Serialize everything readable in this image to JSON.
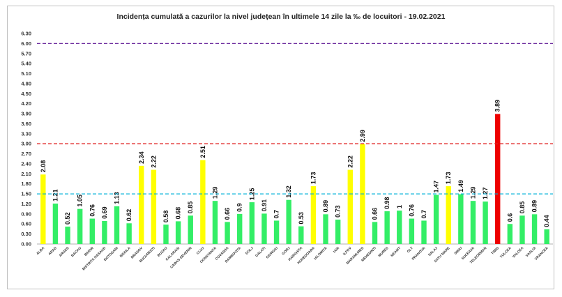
{
  "chart_data": {
    "type": "bar",
    "title": "Incidența cumulată a cazurilor la nivel județean în ultimele 14 zile la ‰ de locuitori - 19.02.2021",
    "xlabel": "",
    "ylabel": "",
    "ylim": [
      0,
      6.3
    ],
    "yticks": [
      "0.00",
      "0.30",
      "0.60",
      "0.90",
      "1.20",
      "1.50",
      "1.80",
      "2.10",
      "2.40",
      "2.70",
      "3.00",
      "3.30",
      "3.60",
      "3.90",
      "4.20",
      "4.50",
      "4.80",
      "5.10",
      "5.40",
      "5.70",
      "6.00",
      "6.30"
    ],
    "grid": false,
    "legend": "none",
    "thresholds": [
      {
        "value": 1.5,
        "color": "#00b0d8"
      },
      {
        "value": 3.0,
        "color": "#e02020"
      },
      {
        "value": 6.0,
        "color": "#7030a0"
      }
    ],
    "colors": {
      "green": "#33ee66",
      "yellow": "#ffff00",
      "red": "#ee0000"
    },
    "categories": [
      "ALBA",
      "ARAD",
      "ARGES",
      "BACAU",
      "BIHOR",
      "BISTRITA NASAUD",
      "BOTOSANI",
      "BRAILA",
      "BRASOV",
      "BUCURESTI",
      "BUZAU",
      "CALARASI",
      "CARAS-SEVERIN",
      "CLUJ",
      "CONSTANTA",
      "COVASNA",
      "DAMBOVITA",
      "DOLJ",
      "GALATI",
      "GIURGIU",
      "GORJ",
      "HARGHITA",
      "HUNEDOARA",
      "IALOMITA",
      "IASI",
      "ILFOV",
      "MARAMURES",
      "MEHEDINTI",
      "MURES",
      "NEAMT",
      "OLT",
      "PRAHOVA",
      "SALAJ",
      "SATU MARE",
      "SIBIU",
      "SUCEAVA",
      "TELEORMAN",
      "TIMIS",
      "TULCEA",
      "VALCEA",
      "VASLUI",
      "VRANCEA"
    ],
    "values": [
      2.08,
      1.21,
      0.52,
      1.05,
      0.76,
      0.69,
      1.13,
      0.62,
      2.34,
      2.22,
      0.58,
      0.68,
      0.85,
      2.51,
      1.29,
      0.66,
      0.9,
      1.25,
      0.91,
      0.7,
      1.32,
      0.53,
      1.73,
      0.89,
      0.73,
      2.22,
      2.99,
      0.66,
      0.98,
      1,
      0.76,
      0.7,
      1.47,
      1.73,
      1.49,
      1.29,
      1.27,
      3.89,
      0.6,
      0.85,
      0.89,
      0.44
    ],
    "labels": [
      "2.08",
      "1.21",
      "0.52",
      "1.05",
      "0.76",
      "0.69",
      "1.13",
      "0.62",
      "2.34",
      "2.22",
      "0.58",
      "0.68",
      "0.85",
      "2.51",
      "1.29",
      "0.66",
      "0.9",
      "1.25",
      "0.91",
      "0.7",
      "1.32",
      "0.53",
      "1.73",
      "0.89",
      "0.73",
      "2.22",
      "2.99",
      "0.66",
      "0.98",
      "1",
      "0.76",
      "0.7",
      "1.47",
      "1.73",
      "1.49",
      "1.29",
      "1.27",
      "3.89",
      "0.6",
      "0.85",
      "0.89",
      "0.44"
    ],
    "bar_colors": [
      "yellow",
      "green",
      "green",
      "green",
      "green",
      "green",
      "green",
      "green",
      "yellow",
      "yellow",
      "green",
      "green",
      "green",
      "yellow",
      "green",
      "green",
      "green",
      "green",
      "green",
      "green",
      "green",
      "green",
      "yellow",
      "green",
      "green",
      "yellow",
      "yellow",
      "green",
      "green",
      "green",
      "green",
      "green",
      "green",
      "yellow",
      "green",
      "green",
      "green",
      "red",
      "green",
      "green",
      "green",
      "green"
    ]
  }
}
